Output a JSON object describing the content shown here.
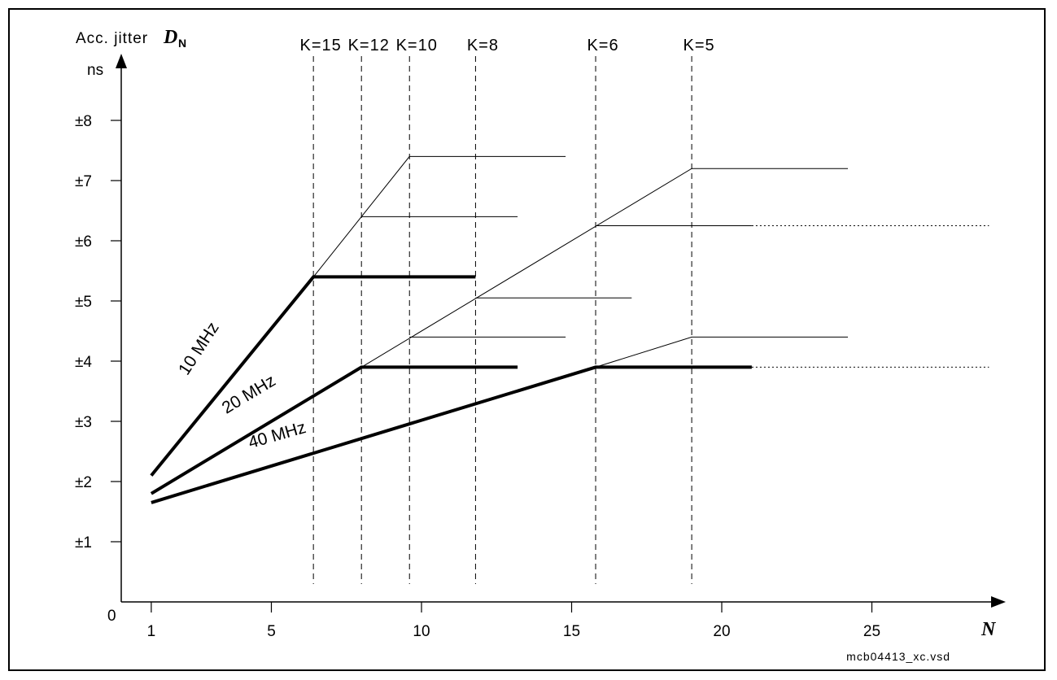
{
  "chart_data": {
    "type": "line",
    "y_axis_label": "Acc. jitter",
    "y_axis_symbol": "D",
    "y_axis_subscript": "N",
    "y_axis_unit": "ns",
    "x_axis_label": "N",
    "origin_label": "0",
    "file_label": "mcb04413_xc.vsd",
    "x_ticks": [
      1,
      5,
      10,
      15,
      20,
      25
    ],
    "x_tick_labels": [
      "1",
      "5",
      "10",
      "15",
      "20",
      "25"
    ],
    "y_ticks": [
      1,
      2,
      3,
      4,
      5,
      6,
      7,
      8
    ],
    "y_tick_labels": [
      "±1",
      "±2",
      "±3",
      "±4",
      "±5",
      "±6",
      "±7",
      "±8"
    ],
    "xlim": [
      0,
      28.5
    ],
    "ylim": [
      0,
      8.9
    ],
    "k_markers": [
      {
        "label": "K=15",
        "x": 6.4
      },
      {
        "label": "K=12",
        "x": 8.0
      },
      {
        "label": "K=10",
        "x": 9.6
      },
      {
        "label": "K=8",
        "x": 11.8
      },
      {
        "label": "K=6",
        "x": 15.8
      },
      {
        "label": "K=5",
        "x": 19.0
      }
    ],
    "series": [
      {
        "name": "10 MHz",
        "x": [
          1,
          6.4,
          11.8
        ],
        "y": [
          2.1,
          5.4,
          5.4
        ],
        "thick": true
      },
      {
        "name": "20 MHz",
        "x": [
          1,
          8.0,
          13.2
        ],
        "y": [
          1.8,
          3.9,
          3.9
        ],
        "thick": true
      },
      {
        "name": "40 MHz",
        "x": [
          1,
          15.8,
          21.0
        ],
        "y": [
          1.65,
          3.9,
          3.9
        ],
        "thick": true
      }
    ],
    "thin_lines": [
      {
        "x": [
          6.4,
          9.6,
          14.8
        ],
        "y": [
          5.4,
          7.4,
          7.4
        ]
      },
      {
        "x": [
          8.0,
          13.2
        ],
        "y": [
          6.4,
          6.4
        ]
      },
      {
        "x": [
          8.0,
          19.0,
          24.2
        ],
        "y": [
          3.9,
          7.2,
          7.2
        ]
      },
      {
        "x": [
          15.8,
          21.0
        ],
        "y": [
          6.25,
          6.25
        ]
      },
      {
        "x": [
          11.8,
          17.0
        ],
        "y": [
          5.05,
          5.05
        ]
      },
      {
        "x": [
          9.6,
          14.8
        ],
        "y": [
          4.4,
          4.4
        ]
      },
      {
        "x": [
          15.8,
          19.0,
          24.2
        ],
        "y": [
          3.9,
          4.4,
          4.4
        ]
      }
    ],
    "dotted_lines": [
      {
        "x": [
          21.0,
          28.9
        ],
        "y": [
          6.25,
          6.25
        ]
      },
      {
        "x": [
          21.0,
          28.9
        ],
        "y": [
          3.9,
          3.9
        ]
      }
    ],
    "grid": false
  }
}
